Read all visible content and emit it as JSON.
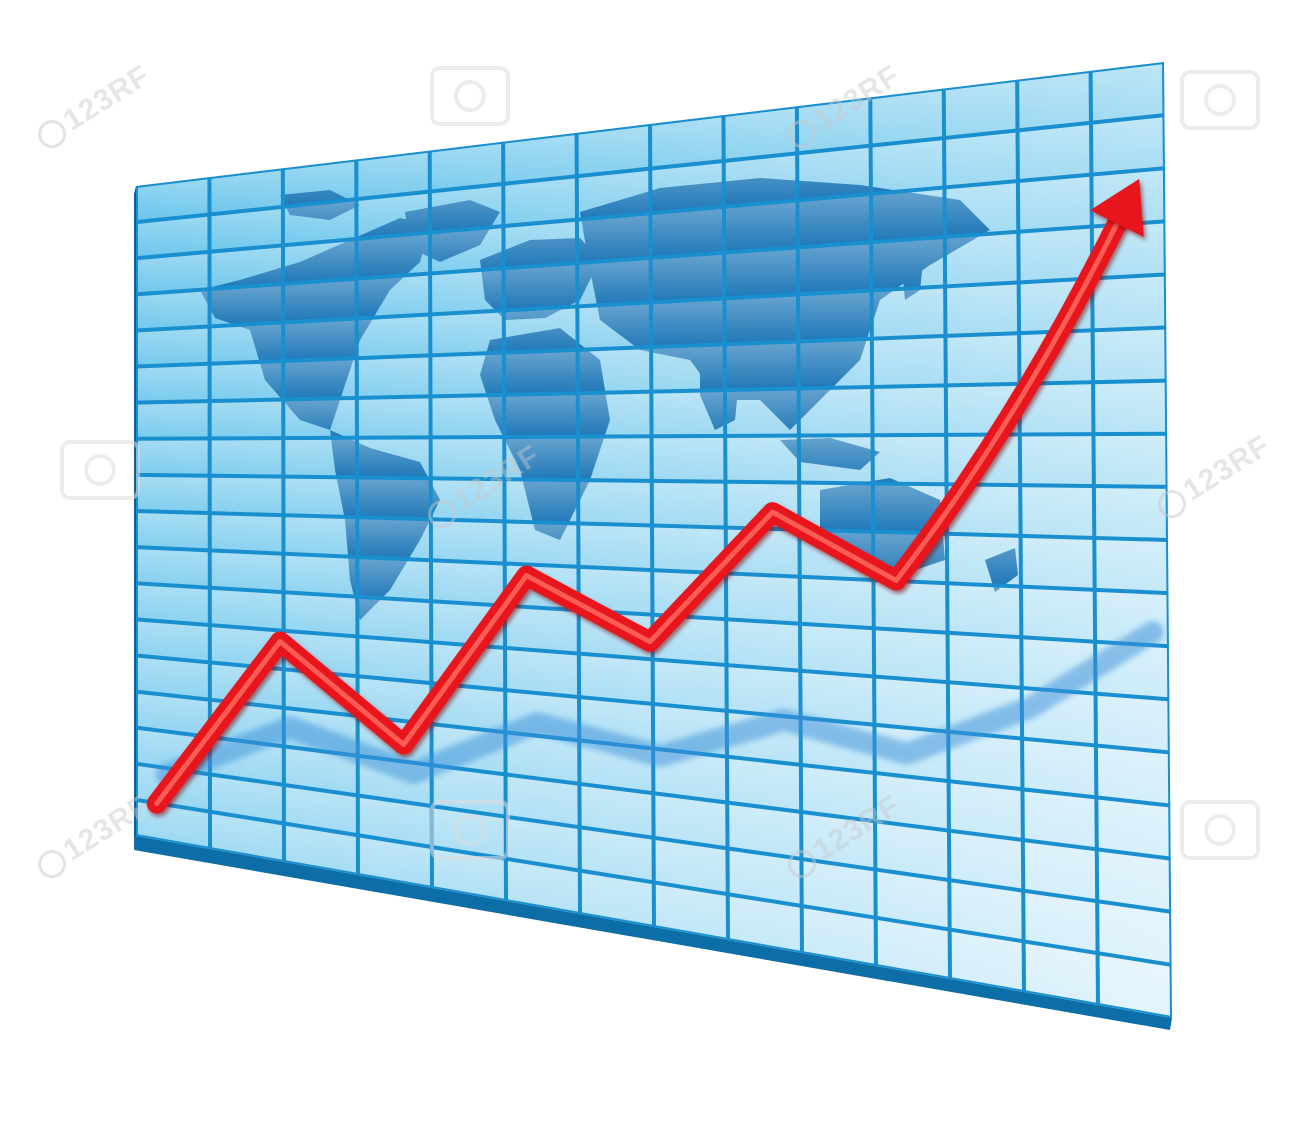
{
  "chart_data": {
    "type": "line",
    "title": "",
    "xlabel": "",
    "ylabel": "",
    "grid": true,
    "background": "world-map",
    "arrow_head": true,
    "x": [
      0,
      1,
      2,
      3,
      4,
      5,
      6,
      7,
      8
    ],
    "series": [
      {
        "values": [
          0,
          3.5,
          1.8,
          5.0,
          4.0,
          6.2,
          5.2,
          7.6,
          11.0
        ],
        "color": "#e8141b"
      }
    ],
    "ylim": [
      0,
      12
    ]
  },
  "watermark": {
    "text": "123RF"
  },
  "colors": {
    "grid_line": "#1a8fd0",
    "cell_light": "#e3f4fc",
    "cell_dark": "#5fc1ea",
    "map": "#1f78b8",
    "line": "#e8141b",
    "shadow_line": "#3a8fd8"
  },
  "icons": [
    "world-map-icon",
    "arrow-head-icon"
  ]
}
